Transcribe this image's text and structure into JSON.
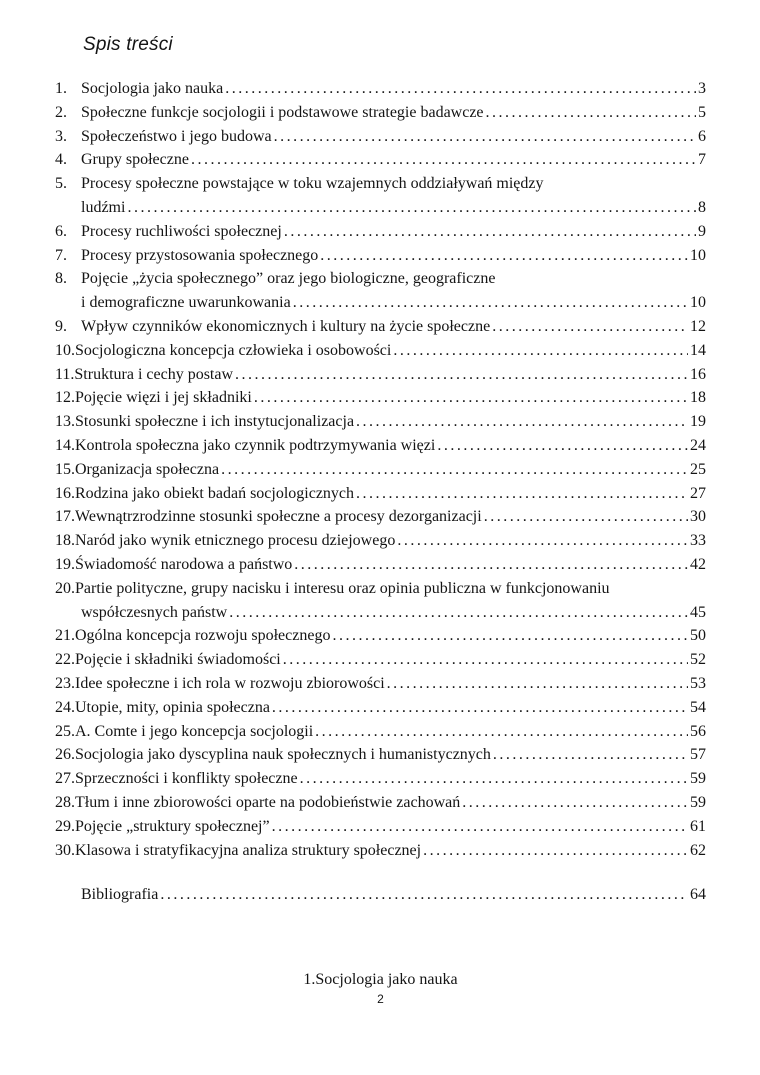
{
  "document": {
    "title": "Spis treści",
    "toc_entries": [
      {
        "num": "1.",
        "lines": [
          "Socjologia jako nauka"
        ],
        "page": "3"
      },
      {
        "num": "2.",
        "lines": [
          "Społeczne funkcje socjologii i podstawowe strategie badawcze"
        ],
        "page": "5"
      },
      {
        "num": "3.",
        "lines": [
          "Społeczeństwo i jego budowa"
        ],
        "page": "6"
      },
      {
        "num": "4.",
        "lines": [
          "Grupy społeczne"
        ],
        "page": "7"
      },
      {
        "num": "5.",
        "lines": [
          "Procesy społeczne powstające w toku wzajemnych oddziaływań między",
          "ludźmi"
        ],
        "page": "8"
      },
      {
        "num": "6.",
        "lines": [
          "Procesy ruchliwości społecznej"
        ],
        "page": "9"
      },
      {
        "num": "7.",
        "lines": [
          "Procesy przystosowania społecznego"
        ],
        "page": "10"
      },
      {
        "num": "8.",
        "lines": [
          "Pojęcie „życia społecznego” oraz jego biologiczne, geograficzne",
          "i demograficzne uwarunkowania"
        ],
        "page": "10"
      },
      {
        "num": "9.",
        "lines": [
          "Wpływ czynników ekonomicznych i kultury na życie społeczne"
        ],
        "page": "12"
      },
      {
        "num": "10.",
        "lines": [
          "Socjologiczna koncepcja człowieka i osobowości"
        ],
        "page": "14"
      },
      {
        "num": "11.",
        "lines": [
          "Struktura i cechy postaw"
        ],
        "page": "16"
      },
      {
        "num": "12.",
        "lines": [
          "Pojęcie więzi i jej składniki"
        ],
        "page": "18"
      },
      {
        "num": "13.",
        "lines": [
          "Stosunki społeczne i ich instytucjonalizacja"
        ],
        "page": "19"
      },
      {
        "num": "14.",
        "lines": [
          "Kontrola społeczna jako czynnik podtrzymywania więzi"
        ],
        "page": "24"
      },
      {
        "num": "15.",
        "lines": [
          "Organizacja społeczna"
        ],
        "page": "25"
      },
      {
        "num": "16.",
        "lines": [
          "Rodzina jako obiekt badań socjologicznych"
        ],
        "page": "27"
      },
      {
        "num": "17.",
        "lines": [
          "Wewnątrzrodzinne stosunki społeczne a procesy dezorganizacji"
        ],
        "page": "30"
      },
      {
        "num": "18.",
        "lines": [
          "Naród jako wynik etnicznego procesu dziejowego"
        ],
        "page": "33"
      },
      {
        "num": "19.",
        "lines": [
          "Świadomość narodowa a państwo"
        ],
        "page": "42"
      },
      {
        "num": "20.",
        "lines": [
          "Partie polityczne, grupy nacisku i interesu oraz opinia publiczna w funkcjonowaniu",
          "współczesnych państw"
        ],
        "page": "45"
      },
      {
        "num": "21.",
        "lines": [
          "Ogólna koncepcja rozwoju społecznego"
        ],
        "page": "50"
      },
      {
        "num": "22.",
        "lines": [
          "Pojęcie i składniki świadomości"
        ],
        "page": "52"
      },
      {
        "num": "23.",
        "lines": [
          "Idee społeczne i ich rola w rozwoju zbiorowości"
        ],
        "page": "53"
      },
      {
        "num": "24.",
        "lines": [
          "Utopie, mity, opinia społeczna"
        ],
        "page": "54"
      },
      {
        "num": "25.",
        "lines": [
          "A. Comte i jego koncepcja socjologii"
        ],
        "page": "56"
      },
      {
        "num": "26.",
        "lines": [
          "Socjologia jako dyscyplina nauk społecznych i humanistycznych"
        ],
        "page": "57"
      },
      {
        "num": "27.",
        "lines": [
          "Sprzeczności i konflikty społeczne"
        ],
        "page": "59"
      },
      {
        "num": "28.",
        "lines": [
          "Tłum i inne zbiorowości oparte na podobieństwie zachowań"
        ],
        "page": "59"
      },
      {
        "num": "29.",
        "lines": [
          "Pojęcie „struktury społecznej”"
        ],
        "page": "61"
      },
      {
        "num": "30.",
        "lines": [
          "Klasowa i stratyfikacyjna analiza struktury społecznej"
        ],
        "page": "62"
      }
    ],
    "bibliography": {
      "label": "Bibliografia",
      "page": "64"
    },
    "footer": {
      "section_heading": "1.Socjologia jako nauka",
      "page_number": "2"
    }
  }
}
